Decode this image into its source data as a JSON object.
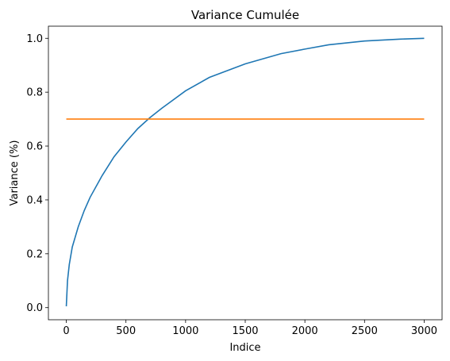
{
  "chart_data": {
    "type": "line",
    "title": "Variance Cumulée",
    "xlabel": "Indice",
    "ylabel": "Variance (%)",
    "xlim": [
      -150,
      3150
    ],
    "ylim": [
      -0.045,
      1.045
    ],
    "xticks": [
      0,
      500,
      1000,
      1500,
      2000,
      2500,
      3000
    ],
    "xtick_labels": [
      "0",
      "500",
      "1000",
      "1500",
      "2000",
      "2500",
      "3000"
    ],
    "yticks": [
      0.0,
      0.2,
      0.4,
      0.6,
      0.8,
      1.0
    ],
    "ytick_labels": [
      "0.0",
      "0.2",
      "0.4",
      "0.6",
      "0.8",
      "1.0"
    ],
    "grid": false,
    "legend": "none",
    "series": [
      {
        "color": "#1f77b4",
        "x": [
          0,
          10,
          25,
          50,
          100,
          150,
          200,
          300,
          400,
          500,
          600,
          700,
          800,
          1000,
          1200,
          1500,
          1800,
          2000,
          2200,
          2500,
          2800,
          3000
        ],
        "y": [
          0.005,
          0.1,
          0.16,
          0.225,
          0.3,
          0.36,
          0.41,
          0.49,
          0.56,
          0.615,
          0.665,
          0.705,
          0.74,
          0.805,
          0.855,
          0.905,
          0.943,
          0.96,
          0.976,
          0.99,
          0.997,
          1.0
        ]
      },
      {
        "color": "#ff7f0e",
        "x": [
          0,
          3000
        ],
        "y": [
          0.7,
          0.7
        ]
      }
    ]
  }
}
